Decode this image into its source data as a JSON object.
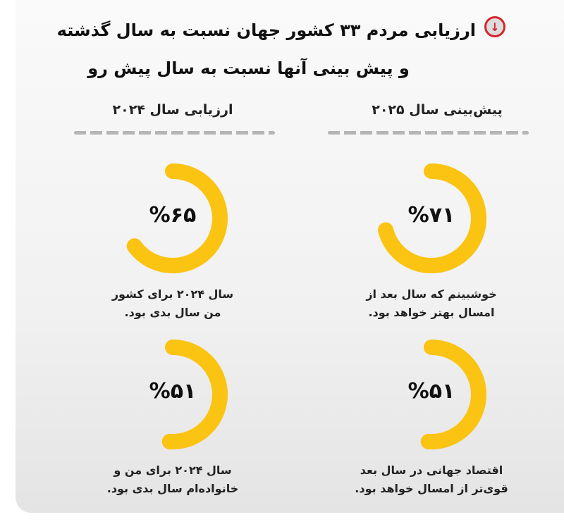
{
  "header": {
    "title_line1": "ارزیابی مردم ۳۳ کشور جهان نسبت به سال گذشته",
    "title_line2": "و پیش بینی آنها نسبت به سال پیش رو",
    "badge_icon": "arrow-down-circle-icon"
  },
  "colors": {
    "ring": "#fbc312",
    "badge": "#d6252c"
  },
  "chart_data": {
    "type": "pie",
    "variant": "progress-ring",
    "columns": [
      {
        "heading": "پیش‌بینی سال ۲۰۲۵",
        "items": [
          {
            "value": 71,
            "label": "%۷۱",
            "caption": [
              "خوشبینم که سال بعد از",
              "امسال بهتر خواهد بود."
            ]
          },
          {
            "value": 51,
            "label": "%۵۱",
            "caption": [
              "اقتصاد جهانی در سال بعد",
              "قوی‌تر از امسال خواهد بود."
            ]
          }
        ]
      },
      {
        "heading": "ارزیابی سال ۲۰۲۴",
        "items": [
          {
            "value": 65,
            "label": "%۶۵",
            "caption": [
              "سال ۲۰۲۴ برای کشور",
              "من سال بدی بود."
            ]
          },
          {
            "value": 51,
            "label": "%۵۱",
            "caption": [
              "سال ۲۰۲۴ برای من و",
              "خانواده‌ام سال بدی بود."
            ]
          }
        ]
      }
    ]
  }
}
